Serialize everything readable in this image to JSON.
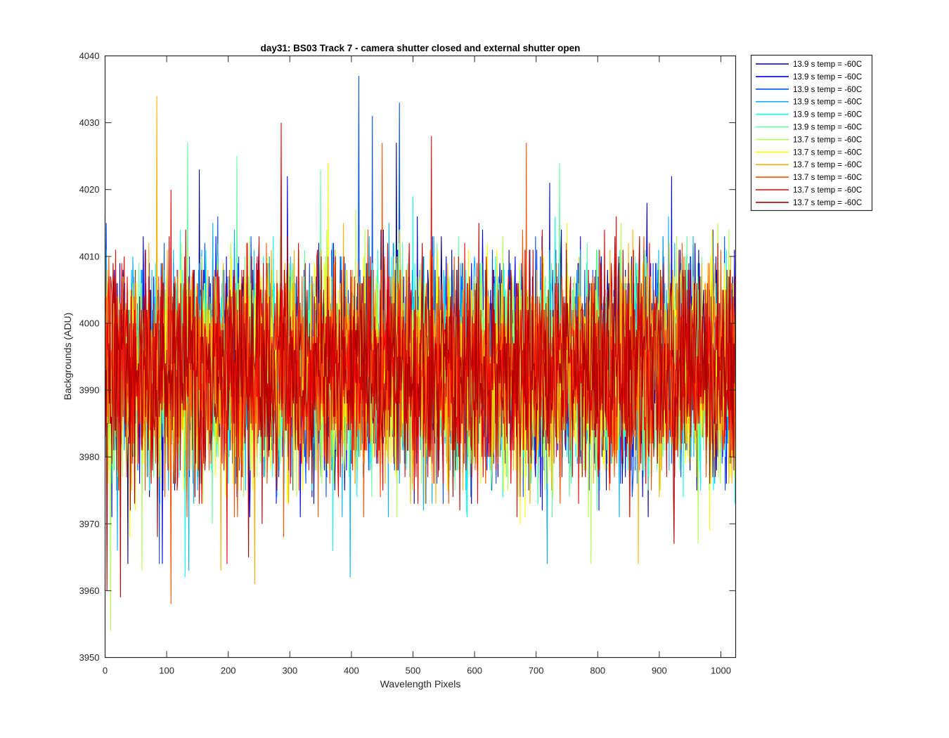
{
  "chart_data": {
    "type": "line",
    "title": "day31: BS03  Track 7 - camera shutter closed and external shutter open",
    "xlabel": "Wavelength Pixels",
    "ylabel": "Backgrounds (ADU)",
    "xlim": [
      0,
      1024
    ],
    "ylim": [
      3950,
      4040
    ],
    "xticks": [
      0,
      100,
      200,
      300,
      400,
      500,
      600,
      700,
      800,
      900,
      1000
    ],
    "yticks": [
      3950,
      3960,
      3970,
      3980,
      3990,
      4000,
      4010,
      4020,
      4030,
      4040
    ],
    "grid": false,
    "legend_position": "outside-top-right",
    "noise": {
      "mean": 3993,
      "std": 8,
      "min": 3954,
      "max": 4037
    },
    "series": [
      {
        "name": "13.9 s temp = -60C",
        "color": "#00008f",
        "spikes": [
          [
            37,
            3964
          ],
          [
            153,
            4023
          ],
          [
            286,
            4022
          ],
          [
            473,
            4027
          ]
        ]
      },
      {
        "name": "13.9 s temp = -60C",
        "color": "#0000ef",
        "spikes": [
          [
            93,
            3964
          ],
          [
            296,
            4022
          ],
          [
            722,
            4021
          ],
          [
            920,
            4022
          ]
        ]
      },
      {
        "name": "13.9 s temp = -60C",
        "color": "#0050ff",
        "spikes": [
          [
            412,
            4037
          ],
          [
            478,
            4033
          ],
          [
            434,
            4031
          ],
          [
            88,
            3964
          ]
        ]
      },
      {
        "name": "13.9 s temp = -60C",
        "color": "#00afff",
        "spikes": [
          [
            398,
            3962
          ],
          [
            136,
            3963
          ],
          [
            718,
            3964
          ],
          [
            20,
            3966
          ]
        ]
      },
      {
        "name": "13.9 s temp = -60C",
        "color": "#10ffef",
        "spikes": [
          [
            130,
            3962
          ],
          [
            370,
            3966
          ],
          [
            60,
            3972
          ],
          [
            500,
            4019
          ]
        ]
      },
      {
        "name": "13.9 s temp = -60C",
        "color": "#60ff9f",
        "spikes": [
          [
            134,
            4027
          ],
          [
            738,
            4024
          ],
          [
            214,
            4025
          ],
          [
            350,
            4023
          ]
        ]
      },
      {
        "name": "13.7 s temp = -60C",
        "color": "#b0ff4f",
        "spikes": [
          [
            9,
            3954
          ],
          [
            60,
            3963
          ],
          [
            789,
            3964
          ],
          [
            963,
            3967
          ]
        ]
      },
      {
        "name": "13.7 s temp = -60C",
        "color": "#ffff00",
        "spikes": [
          [
            362,
            4024
          ],
          [
            982,
            3969
          ],
          [
            40,
            3968
          ],
          [
            674,
            3970
          ]
        ]
      },
      {
        "name": "13.7 s temp = -60C",
        "color": "#ffaf00",
        "spikes": [
          [
            84,
            4034
          ],
          [
            243,
            3961
          ],
          [
            188,
            3963
          ],
          [
            866,
            3964
          ]
        ]
      },
      {
        "name": "13.7 s temp = -60C",
        "color": "#ff5000",
        "spikes": [
          [
            684,
            4027
          ],
          [
            450,
            4027
          ],
          [
            107,
            3958
          ],
          [
            290,
            3968
          ]
        ]
      },
      {
        "name": "13.7 s temp = -60C",
        "color": "#ef0000",
        "spikes": [
          [
            286,
            4030
          ],
          [
            530,
            4028
          ],
          [
            107,
            4020
          ],
          [
            198,
            3964
          ]
        ]
      },
      {
        "name": "13.7 s temp = -60C",
        "color": "#b00000",
        "spikes": [
          [
            25,
            3959
          ],
          [
            3,
            3960
          ],
          [
            233,
            3965
          ],
          [
            924,
            3967
          ]
        ]
      }
    ]
  }
}
